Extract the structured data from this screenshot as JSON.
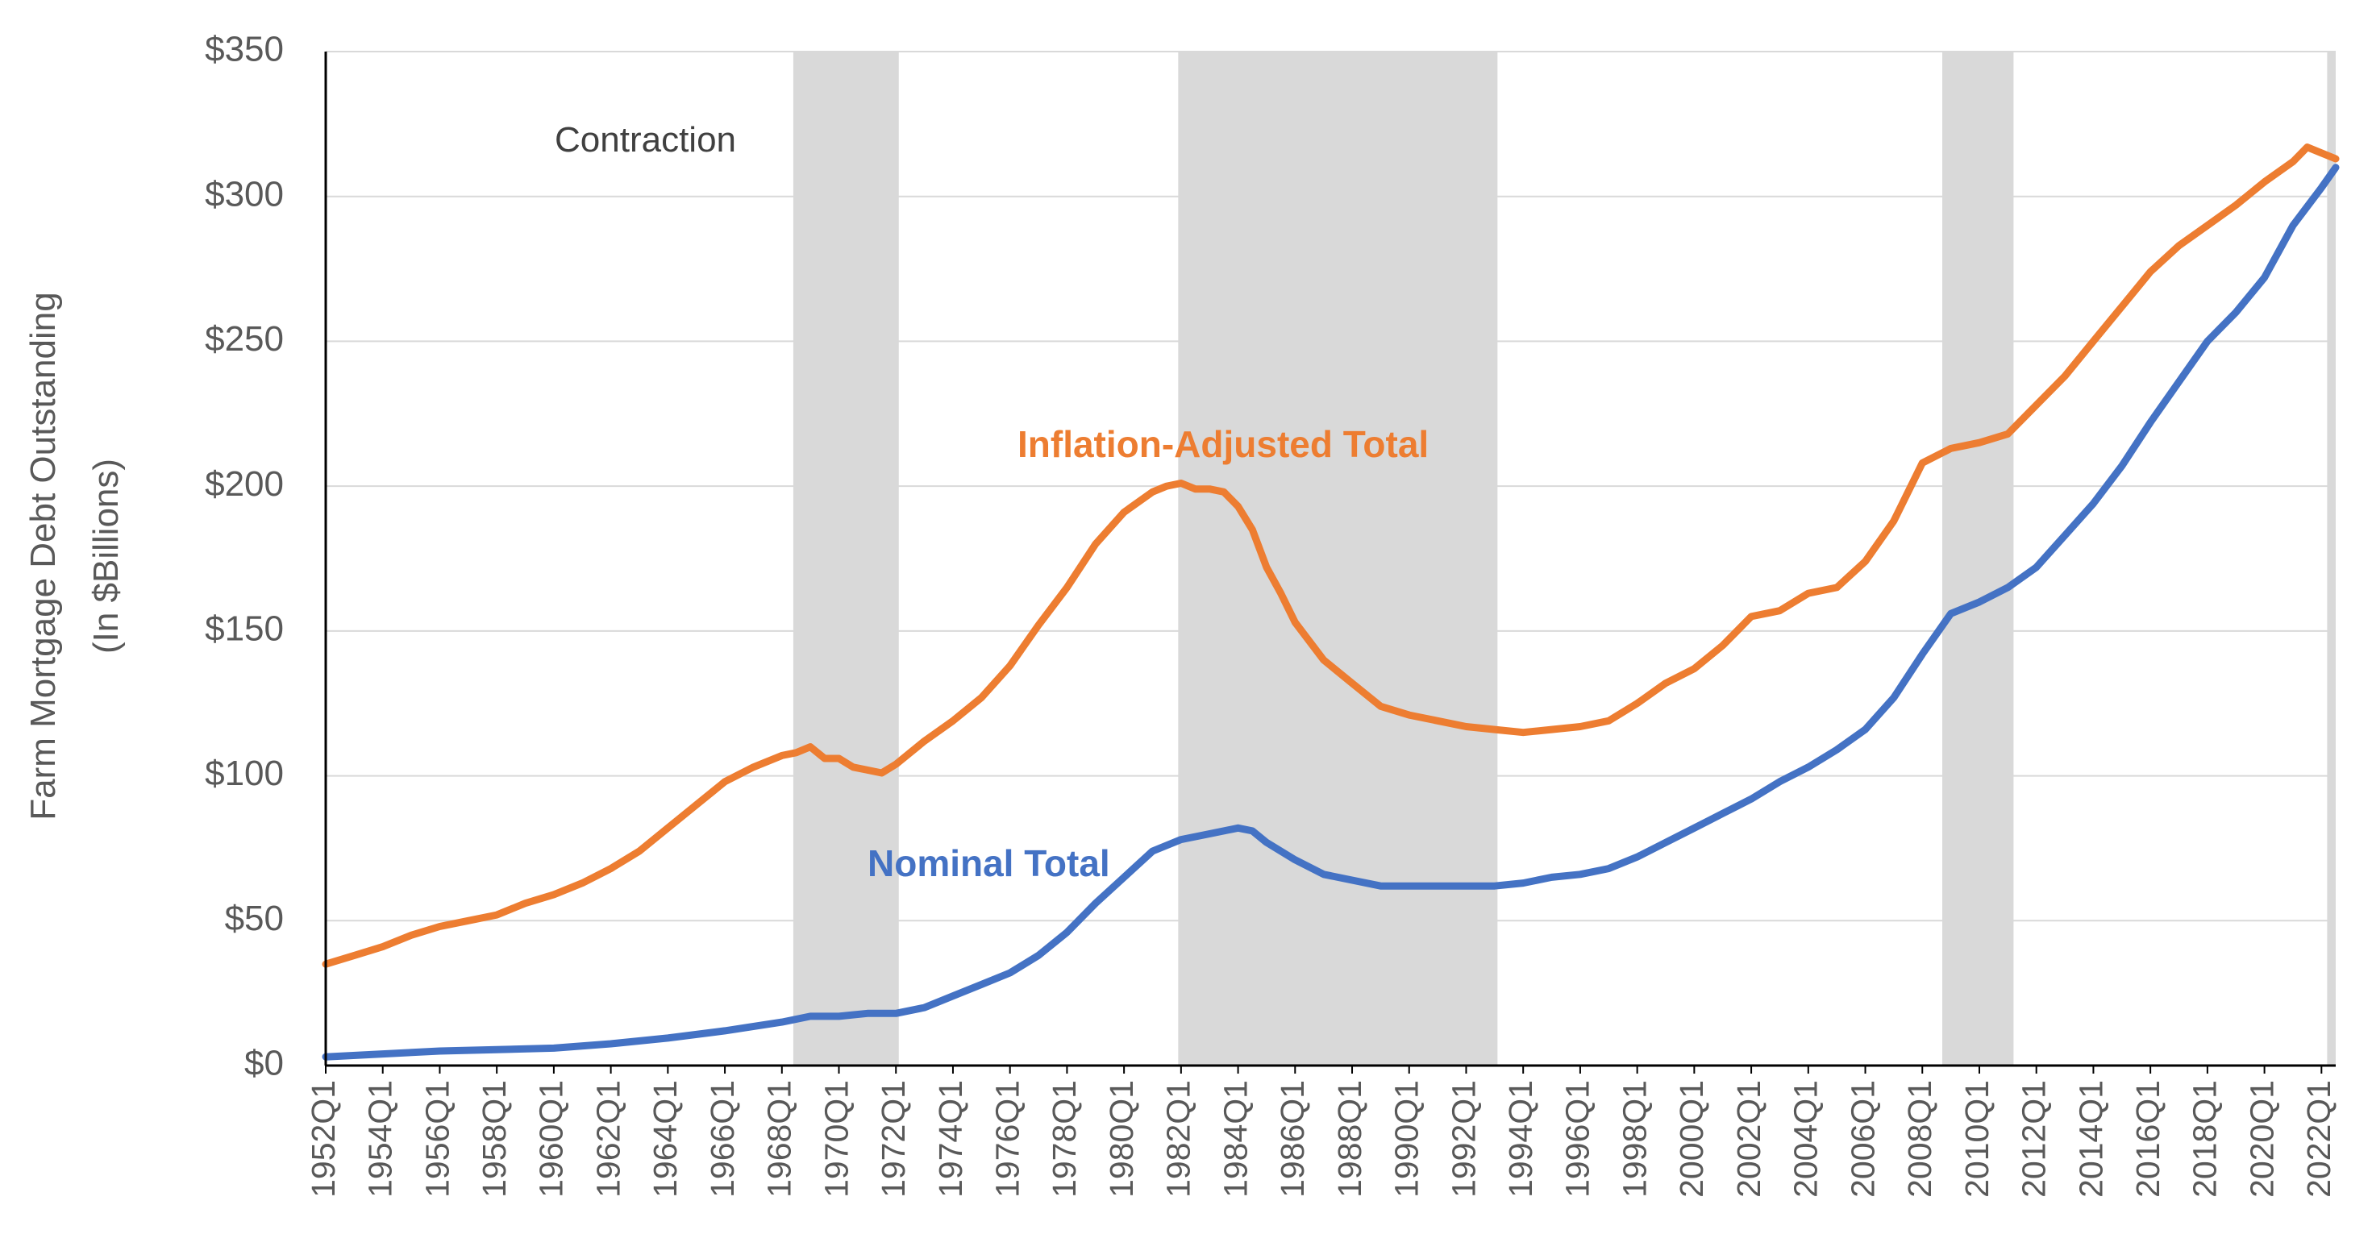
{
  "chart_data": {
    "type": "line",
    "title": "",
    "xlabel": "",
    "ylabel_line1": "Farm Mortgage Debt Outstanding",
    "ylabel_line2": "(In $Billions)",
    "ylim": [
      0,
      350
    ],
    "y_ticks": [
      0,
      50,
      100,
      150,
      200,
      250,
      300,
      350
    ],
    "y_tick_labels": [
      "$0",
      "$50",
      "$100",
      "$150",
      "$200",
      "$250",
      "$300",
      "$350"
    ],
    "grid": true,
    "x_range": [
      1952,
      2022.5
    ],
    "x_tick_labels": [
      "1952Q1",
      "1954Q1",
      "1956Q1",
      "1958Q1",
      "1960Q1",
      "1962Q1",
      "1964Q1",
      "1966Q1",
      "1968Q1",
      "1970Q1",
      "1972Q1",
      "1974Q1",
      "1976Q1",
      "1978Q1",
      "1980Q1",
      "1982Q1",
      "1984Q1",
      "1986Q1",
      "1988Q1",
      "1990Q1",
      "1992Q1",
      "1994Q1",
      "1996Q1",
      "1998Q1",
      "2000Q1",
      "2002Q1",
      "2004Q1",
      "2006Q1",
      "2008Q1",
      "2010Q1",
      "2012Q1",
      "2014Q1",
      "2016Q1",
      "2018Q1",
      "2020Q1",
      "2022Q1"
    ],
    "contraction_bands": [
      [
        1968.4,
        1972.1
      ],
      [
        1981.9,
        1993.1
      ],
      [
        2008.7,
        2011.2
      ],
      [
        2022.2,
        2022.5
      ]
    ],
    "band_label": "Contraction",
    "series": [
      {
        "name": "Inflation-Adjusted Total",
        "color": "#ED7D31",
        "x": [
          1952,
          1953,
          1954,
          1955,
          1956,
          1957,
          1958,
          1959,
          1960,
          1961,
          1962,
          1963,
          1964,
          1965,
          1966,
          1967,
          1968,
          1968.5,
          1969,
          1969.5,
          1970,
          1970.5,
          1971,
          1971.5,
          1972,
          1973,
          1974,
          1975,
          1976,
          1977,
          1978,
          1979,
          1980,
          1981,
          1981.5,
          1982,
          1982.5,
          1983,
          1983.5,
          1984,
          1984.5,
          1985,
          1985.5,
          1986,
          1987,
          1988,
          1989,
          1990,
          1991,
          1992,
          1993,
          1994,
          1995,
          1996,
          1997,
          1998,
          1999,
          2000,
          2001,
          2002,
          2003,
          2004,
          2005,
          2006,
          2007,
          2008,
          2009,
          2009.5,
          2010,
          2011,
          2012,
          2013,
          2014,
          2015,
          2016,
          2017,
          2018,
          2019,
          2020,
          2021,
          2021.5,
          2022,
          2022.5
        ],
        "values": [
          35,
          38,
          41,
          45,
          48,
          50,
          52,
          56,
          59,
          63,
          68,
          74,
          82,
          90,
          98,
          103,
          107,
          108,
          110,
          106,
          106,
          103,
          102,
          101,
          104,
          112,
          119,
          127,
          138,
          152,
          165,
          180,
          191,
          198,
          200,
          201,
          199,
          199,
          198,
          193,
          185,
          172,
          163,
          153,
          140,
          132,
          124,
          121,
          119,
          117,
          116,
          115,
          116,
          117,
          119,
          125,
          132,
          137,
          145,
          155,
          157,
          163,
          165,
          174,
          188,
          208,
          213,
          214,
          215,
          218,
          228,
          238,
          250,
          262,
          274,
          283,
          290,
          297,
          305,
          312,
          317,
          315,
          313
        ]
      },
      {
        "name": "Nominal Total",
        "color": "#4472C4",
        "x": [
          1952,
          1954,
          1956,
          1958,
          1960,
          1962,
          1964,
          1966,
          1968,
          1969,
          1970,
          1971,
          1972,
          1973,
          1974,
          1975,
          1976,
          1977,
          1978,
          1979,
          1980,
          1981,
          1982,
          1983,
          1984,
          1984.5,
          1985,
          1986,
          1987,
          1988,
          1989,
          1990,
          1991,
          1992,
          1993,
          1994,
          1995,
          1996,
          1997,
          1998,
          1999,
          2000,
          2001,
          2002,
          2003,
          2004,
          2005,
          2006,
          2007,
          2008,
          2009,
          2010,
          2011,
          2012,
          2013,
          2014,
          2015,
          2016,
          2017,
          2018,
          2019,
          2020,
          2021,
          2022,
          2022.5
        ],
        "values": [
          3,
          4,
          5,
          5.5,
          6,
          7.5,
          9.5,
          12,
          15,
          17,
          17,
          18,
          18,
          20,
          24,
          28,
          32,
          38,
          46,
          56,
          65,
          74,
          78,
          80,
          82,
          81,
          77,
          71,
          66,
          64,
          62,
          62,
          62,
          62,
          62,
          63,
          65,
          66,
          68,
          72,
          77,
          82,
          87,
          92,
          98,
          103,
          109,
          116,
          127,
          142,
          156,
          160,
          165,
          172,
          183,
          194,
          207,
          222,
          236,
          250,
          260,
          272,
          290,
          303,
          310
        ]
      }
    ]
  }
}
